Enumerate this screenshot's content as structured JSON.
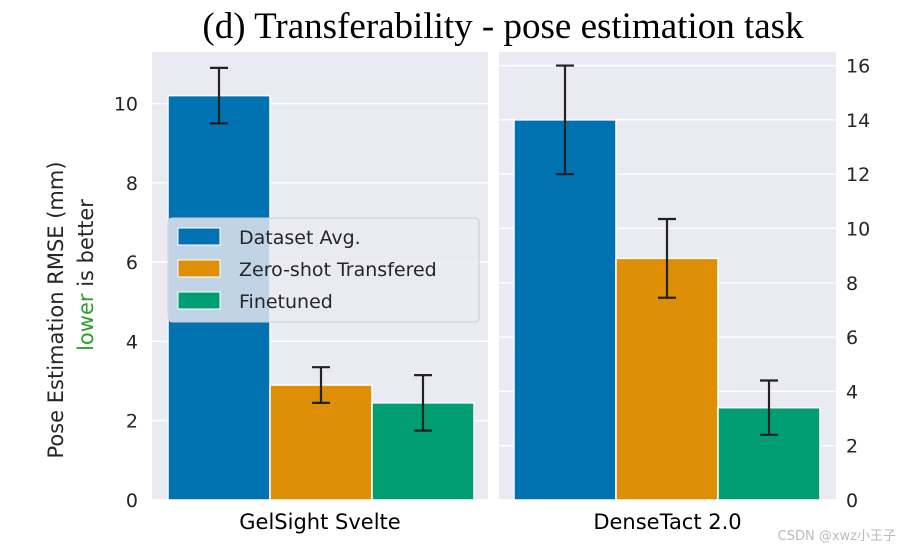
{
  "chart_data": {
    "type": "bar",
    "title": "(d) Transferability - pose estimation task",
    "ylabel_line1": "Pose Estimation RMSE (mm)",
    "ylabel_line2_green": "lower",
    "ylabel_line2_rest": " is better",
    "legend_placement": "center-left",
    "grid": true,
    "series": [
      {
        "name": "Dataset Avg.",
        "color": "#0072b2"
      },
      {
        "name": "Zero-shot Transfered",
        "color": "#de8f05"
      },
      {
        "name": "Finetuned",
        "color": "#029e73"
      }
    ],
    "panels": [
      {
        "category": "GelSight Svelte",
        "axis_side": "left",
        "ylim": [
          0,
          11.3
        ],
        "yticks": [
          0,
          2,
          4,
          6,
          8,
          10
        ],
        "values": [
          10.2,
          2.9,
          2.45
        ],
        "errors": [
          0.7,
          0.45,
          0.7
        ]
      },
      {
        "category": "DenseTact 2.0",
        "axis_side": "right",
        "ylim": [
          0,
          16.5
        ],
        "yticks": [
          0,
          2,
          4,
          6,
          8,
          10,
          12,
          14,
          16
        ],
        "values": [
          14.0,
          8.9,
          3.4
        ],
        "errors": [
          2.0,
          1.45,
          1.0
        ]
      }
    ]
  },
  "watermark": "CSDN @xwz小王子"
}
